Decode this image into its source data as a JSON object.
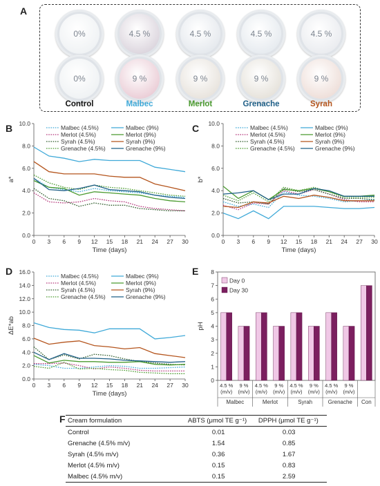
{
  "panel_letters": {
    "a": "A",
    "b": "B",
    "c": "C",
    "d": "D",
    "e": "E",
    "f": "F"
  },
  "panelA": {
    "top_row": [
      "0%",
      "4.5 %",
      "4.5 %",
      "4.5 %",
      "4.5 %"
    ],
    "bottom_row": [
      "0%",
      "9 %",
      "9 %",
      "9 %",
      "9 %"
    ],
    "labels": [
      {
        "text": "Control",
        "color": "#111111"
      },
      {
        "text": "Malbec",
        "color": "#3fa9d8"
      },
      {
        "text": "Merlot",
        "color": "#4a9a2f"
      },
      {
        "text": "Grenache",
        "color": "#1f5f87"
      },
      {
        "text": "Syrah",
        "color": "#b4541c"
      }
    ],
    "jar_fill_top": [
      "#eef1f3",
      "#d9d2db",
      "#e3e7ec",
      "#e4e9ee",
      "#e8eaee"
    ],
    "jar_fill_bottom": [
      "#eef1f3",
      "#e9c9d3",
      "#e6e1da",
      "#e4e0d8",
      "#eddcd6"
    ]
  },
  "chart_data": [
    {
      "id": "B",
      "type": "line",
      "ylabel": "a*",
      "xlabel": "Time (days)",
      "x": [
        0,
        3,
        6,
        9,
        12,
        15,
        18,
        21,
        24,
        27,
        30
      ],
      "xticks": [
        "0",
        "3",
        "6",
        "9",
        "12",
        "15",
        "18",
        "21",
        "24",
        "27",
        "30"
      ],
      "ylim": [
        0,
        10
      ],
      "yticks": [
        "0.0",
        "2.0",
        "4.0",
        "6.0",
        "8.0",
        "10.0"
      ],
      "series": [
        {
          "name": "Malbec (4.5%)",
          "color": "#3fa9d8",
          "dash": true,
          "values": [
            5.1,
            4.3,
            4.1,
            3.9,
            4.2,
            4.0,
            3.9,
            3.8,
            3.6,
            3.5,
            3.4
          ]
        },
        {
          "name": "Merlot (4.5%)",
          "color": "#b3367a",
          "dash": true,
          "values": [
            3.8,
            3.0,
            2.9,
            3.0,
            3.3,
            3.1,
            3.0,
            2.6,
            2.4,
            2.3,
            2.2
          ]
        },
        {
          "name": "Syrah (4.5%)",
          "color": "#2d5a2a",
          "dash": true,
          "values": [
            4.2,
            3.3,
            3.1,
            2.6,
            2.9,
            2.7,
            2.7,
            2.4,
            2.3,
            2.2,
            2.2
          ]
        },
        {
          "name": "Grenache (4.5%)",
          "color": "#4a9a2f",
          "dash": true,
          "values": [
            5.4,
            4.7,
            4.3,
            4.1,
            4.5,
            4.3,
            4.2,
            4.0,
            3.8,
            3.6,
            3.5
          ]
        },
        {
          "name": "Malbec (9%)",
          "color": "#3fa9d8",
          "dash": false,
          "values": [
            7.9,
            7.1,
            6.9,
            6.6,
            6.8,
            6.7,
            6.7,
            6.7,
            6.1,
            5.9,
            5.7
          ]
        },
        {
          "name": "Merlot (9%)",
          "color": "#4a9a2f",
          "dash": false,
          "values": [
            4.9,
            4.3,
            4.2,
            3.6,
            3.9,
            3.8,
            3.7,
            3.6,
            3.3,
            3.1,
            3.0
          ]
        },
        {
          "name": "Syrah (9%)",
          "color": "#b4541c",
          "dash": false,
          "values": [
            6.6,
            5.7,
            5.5,
            5.5,
            5.5,
            5.3,
            5.2,
            5.2,
            4.6,
            4.3,
            4.0
          ]
        },
        {
          "name": "Grenache (9%)",
          "color": "#1f5f87",
          "dash": false,
          "values": [
            5.1,
            4.1,
            4.0,
            4.2,
            4.5,
            4.1,
            4.0,
            3.9,
            3.6,
            3.4,
            3.3
          ]
        }
      ],
      "legend_order": [
        0,
        4,
        1,
        5,
        2,
        6,
        3,
        7
      ]
    },
    {
      "id": "C",
      "type": "line",
      "ylabel": "b*",
      "xlabel": "Time (days)",
      "x": [
        0,
        3,
        6,
        9,
        12,
        15,
        18,
        21,
        24,
        27,
        30
      ],
      "xticks": [
        "0",
        "3",
        "6",
        "9",
        "12",
        "15",
        "18",
        "21",
        "24",
        "27",
        "30"
      ],
      "ylim": [
        0,
        10
      ],
      "yticks": [
        "0.0",
        "2.0",
        "4.0",
        "6.0",
        "8.0",
        "10.0"
      ],
      "series": [
        {
          "name": "Malbec (4.5%)",
          "color": "#3fa9d8",
          "dash": true,
          "values": [
            3.0,
            2.6,
            2.8,
            2.5,
            3.9,
            3.6,
            3.5,
            3.3,
            3.0,
            3.1,
            3.2
          ]
        },
        {
          "name": "Merlot (4.5%)",
          "color": "#b3367a",
          "dash": true,
          "values": [
            2.7,
            2.3,
            2.9,
            2.8,
            4.0,
            3.7,
            4.1,
            3.7,
            3.2,
            3.0,
            3.0
          ]
        },
        {
          "name": "Syrah (4.5%)",
          "color": "#2d5a2a",
          "dash": true,
          "values": [
            3.3,
            2.9,
            3.0,
            2.8,
            4.2,
            3.9,
            4.1,
            3.7,
            3.3,
            3.3,
            3.2
          ]
        },
        {
          "name": "Grenache (4.5%)",
          "color": "#4a9a2f",
          "dash": true,
          "values": [
            3.6,
            3.1,
            3.8,
            3.0,
            4.3,
            4.0,
            4.3,
            3.9,
            3.4,
            3.4,
            3.4
          ]
        },
        {
          "name": "Malbec (9%)",
          "color": "#3fa9d8",
          "dash": false,
          "values": [
            2.0,
            1.5,
            2.2,
            1.5,
            2.6,
            2.6,
            2.6,
            2.5,
            2.4,
            2.4,
            2.5
          ]
        },
        {
          "name": "Merlot (9%)",
          "color": "#4a9a2f",
          "dash": false,
          "values": [
            4.4,
            3.3,
            4.0,
            3.2,
            4.1,
            4.0,
            4.2,
            3.9,
            3.5,
            3.5,
            3.6
          ]
        },
        {
          "name": "Syrah (9%)",
          "color": "#b4541c",
          "dash": false,
          "values": [
            2.6,
            2.5,
            3.0,
            2.9,
            3.5,
            3.3,
            3.6,
            3.4,
            3.1,
            3.1,
            3.1
          ]
        },
        {
          "name": "Grenache (9%)",
          "color": "#1f5f87",
          "dash": false,
          "values": [
            3.7,
            3.8,
            4.0,
            3.2,
            3.7,
            3.7,
            4.2,
            4.0,
            3.5,
            3.5,
            3.5
          ]
        }
      ],
      "legend_order": [
        0,
        4,
        1,
        5,
        2,
        6,
        3,
        7
      ]
    },
    {
      "id": "D",
      "type": "line",
      "ylabel": "ΔE*ab",
      "xlabel": "Time (days)",
      "x": [
        0,
        3,
        6,
        9,
        12,
        15,
        18,
        21,
        24,
        27,
        30
      ],
      "xticks": [
        "0",
        "3",
        "6",
        "9",
        "12",
        "15",
        "18",
        "21",
        "24",
        "27",
        "30"
      ],
      "ylim": [
        0,
        16
      ],
      "yticks": [
        "0.0",
        "2.0",
        "4.0",
        "6.0",
        "8.0",
        "10.0",
        "12.0",
        "14.0",
        "16.0"
      ],
      "series": [
        {
          "name": "Malbec (4.5%)",
          "color": "#3fa9d8",
          "dash": true,
          "values": [
            2.2,
            2.0,
            1.6,
            1.6,
            1.8,
            2.0,
            1.9,
            1.6,
            1.6,
            1.7,
            1.8
          ]
        },
        {
          "name": "Merlot (4.5%)",
          "color": "#b3367a",
          "dash": true,
          "values": [
            2.3,
            2.3,
            2.4,
            2.0,
            1.5,
            1.8,
            1.6,
            1.3,
            1.2,
            1.2,
            1.2
          ]
        },
        {
          "name": "Syrah (4.5%)",
          "color": "#2d5a2a",
          "dash": true,
          "values": [
            4.8,
            2.9,
            3.6,
            3.0,
            3.7,
            3.5,
            3.0,
            2.6,
            2.4,
            2.2,
            2.1
          ]
        },
        {
          "name": "Grenache (4.5%)",
          "color": "#4a9a2f",
          "dash": true,
          "values": [
            1.9,
            1.6,
            2.5,
            1.5,
            1.6,
            1.4,
            1.3,
            1.0,
            0.9,
            0.8,
            0.8
          ]
        },
        {
          "name": "Malbec (9%)",
          "color": "#3fa9d8",
          "dash": false,
          "values": [
            8.4,
            7.7,
            7.4,
            7.3,
            6.9,
            7.5,
            7.5,
            7.5,
            6.0,
            6.2,
            6.5
          ]
        },
        {
          "name": "Merlot (9%)",
          "color": "#4a9a2f",
          "dash": false,
          "values": [
            3.5,
            2.4,
            2.8,
            2.6,
            2.6,
            2.5,
            2.5,
            2.6,
            2.2,
            2.1,
            2.2
          ]
        },
        {
          "name": "Syrah (9%)",
          "color": "#b4541c",
          "dash": false,
          "values": [
            6.1,
            5.2,
            5.5,
            5.7,
            5.0,
            4.8,
            4.5,
            4.7,
            3.8,
            3.5,
            3.2
          ]
        },
        {
          "name": "Grenache (9%)",
          "color": "#1f5f87",
          "dash": false,
          "values": [
            4.0,
            2.9,
            3.8,
            3.1,
            3.1,
            3.0,
            2.8,
            2.7,
            2.6,
            2.5,
            2.6
          ]
        }
      ],
      "legend_order": [
        0,
        4,
        1,
        5,
        2,
        6,
        3,
        7
      ]
    },
    {
      "id": "E",
      "type": "bar",
      "ylabel": "pH",
      "ylim": [
        0,
        8
      ],
      "yticks": [
        "0",
        "1",
        "2",
        "3",
        "4",
        "5",
        "6",
        "7",
        "8"
      ],
      "categories": [
        "4.5 %\n(m/v)",
        "9 %\n(m/v)",
        "4.5 %\n(m/v)",
        "9 %\n(m/v)",
        "4.5 %\n(m/v)",
        "9 %\n(m/v)",
        "4.5 %\n(m/v)",
        "9 %\n(m/v)",
        ""
      ],
      "groups": [
        {
          "label": "Malbec",
          "span": 2
        },
        {
          "label": "Merlot",
          "span": 2
        },
        {
          "label": "Syrah",
          "span": 2
        },
        {
          "label": "Grenache",
          "span": 2
        },
        {
          "label": "Con",
          "span": 1
        }
      ],
      "series": [
        {
          "name": "Day 0",
          "color": "#f0c8e6",
          "values": [
            5,
            4,
            5,
            4,
            5,
            4,
            5,
            4,
            7
          ]
        },
        {
          "name": "Day 30",
          "color": "#7b1f5f",
          "values": [
            5,
            4,
            5,
            4,
            5,
            4,
            5,
            4,
            7
          ]
        }
      ],
      "legend": "top-left"
    }
  ],
  "tableF": {
    "headers": [
      "Cream formulation",
      "ABTS (μmol TE g⁻¹)",
      "DPPH (μmol TE g⁻¹)"
    ],
    "rows": [
      [
        "Control",
        "0.01",
        "0.03"
      ],
      [
        "Grenache (4.5% m/v)",
        "1.54",
        "0.85"
      ],
      [
        "Syrah (4.5% m/v)",
        "0.36",
        "1.67"
      ],
      [
        "Merlot (4.5% m/v)",
        "0.15",
        "0.83"
      ],
      [
        "Malbec (4.5% m/v)",
        "0.15",
        "2.59"
      ]
    ]
  }
}
